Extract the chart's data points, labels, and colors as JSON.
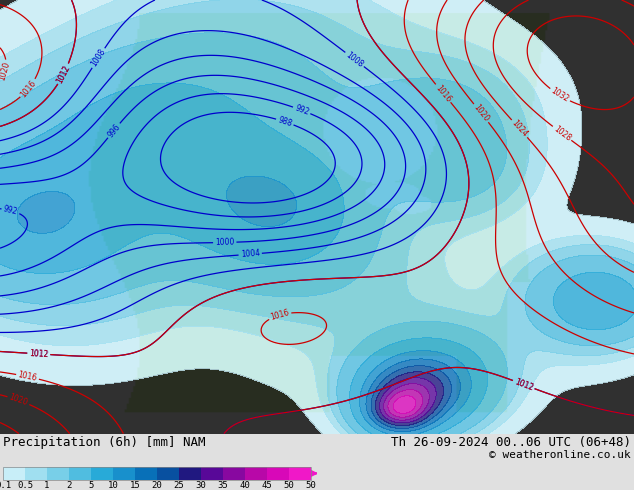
{
  "title_left": "Precipitation (6h) [mm] NAM",
  "title_right": "Th 26-09-2024 00..06 UTC (06+48)",
  "copyright": "© weatheronline.co.uk",
  "colorbar_levels": [
    0.1,
    0.5,
    1,
    2,
    5,
    10,
    15,
    20,
    25,
    30,
    35,
    40,
    45,
    50
  ],
  "colorbar_colors": [
    "#c8eef8",
    "#a0dff0",
    "#78cfe8",
    "#50bde0",
    "#28aad8",
    "#1890cc",
    "#0870b8",
    "#0850a0",
    "#201880",
    "#580898",
    "#8808a0",
    "#b808a8",
    "#d808b8",
    "#f018c8"
  ],
  "bg_color": "#e0e0e0",
  "ocean_color": "#ddeeff",
  "land_color": "#c8e0a0",
  "no_precip_color": "#f0f0f0",
  "label_fontsize": 9,
  "title_fontsize": 9
}
